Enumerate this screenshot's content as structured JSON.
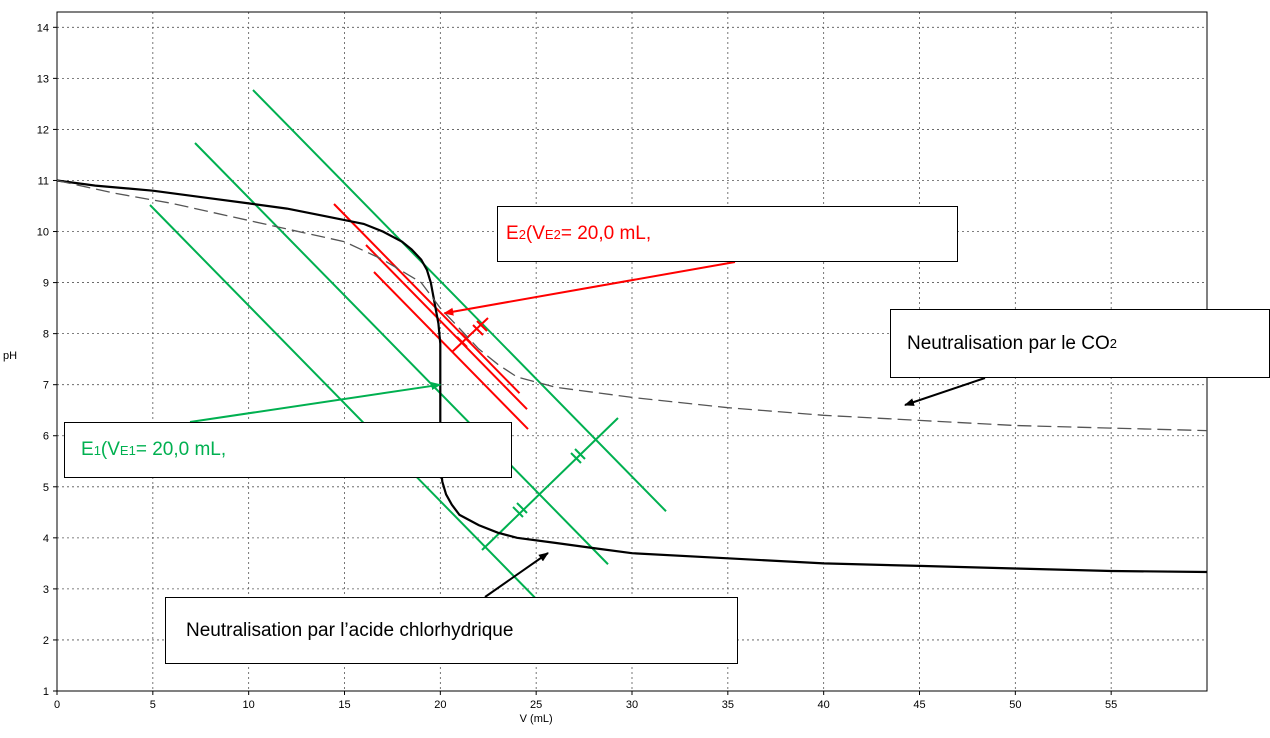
{
  "chart_data": {
    "type": "line",
    "xlabel": "V (mL)",
    "ylabel": "pH",
    "xlim": [
      0,
      60
    ],
    "ylim": [
      1,
      14.3
    ],
    "x_ticks": [
      0,
      5,
      10,
      15,
      20,
      25,
      30,
      35,
      40,
      45,
      50,
      55
    ],
    "y_ticks": [
      1,
      2,
      3,
      4,
      5,
      6,
      7,
      8,
      9,
      10,
      11,
      12,
      13,
      14
    ],
    "grid": true,
    "series": [
      {
        "style": "solid",
        "color": "#000000",
        "x": [
          0,
          2,
          5,
          8,
          10,
          12,
          14,
          16,
          17,
          18,
          18.5,
          19,
          19.3,
          19.5,
          19.7,
          19.9,
          20.0,
          20.0,
          20.0,
          20.1,
          20.3,
          20.6,
          21,
          22,
          23,
          24,
          26,
          28,
          30,
          35,
          40,
          45,
          50,
          55,
          60
        ],
        "y": [
          11.0,
          10.9,
          10.8,
          10.65,
          10.55,
          10.45,
          10.3,
          10.15,
          10.0,
          9.8,
          9.65,
          9.45,
          9.25,
          9.0,
          8.6,
          8.2,
          7.8,
          6.5,
          5.5,
          5.1,
          4.85,
          4.65,
          4.45,
          4.25,
          4.1,
          4.0,
          3.9,
          3.8,
          3.7,
          3.6,
          3.5,
          3.45,
          3.4,
          3.35,
          3.33
        ]
      },
      {
        "style": "dashed",
        "color": "#555555",
        "x": [
          0,
          3,
          6,
          9,
          12,
          15,
          17,
          19,
          20,
          21,
          22,
          23,
          24,
          26,
          28,
          30,
          35,
          40,
          45,
          50,
          55,
          60
        ],
        "y": [
          11.0,
          10.75,
          10.55,
          10.3,
          10.05,
          9.8,
          9.45,
          9.0,
          8.5,
          8.1,
          7.7,
          7.4,
          7.15,
          6.95,
          6.85,
          6.75,
          6.55,
          6.4,
          6.3,
          6.2,
          6.15,
          6.1
        ]
      }
    ],
    "annotations": {
      "e2": {
        "main": "E",
        "sub": "2",
        "mid": " (V",
        "sub2": "E2",
        "tail": " = 20,0 mL,",
        "color": "#ff0000",
        "target": [
          20.0,
          8.4
        ]
      },
      "e1": {
        "main": "E",
        "sub": "1",
        "mid": " (V",
        "sub2": "E1",
        "tail": " = 20,0 mL,",
        "color": "#00b050",
        "target": [
          20.0,
          7.0
        ]
      },
      "co2": {
        "pre": "Neutralisation par le CO",
        "sub": "2"
      },
      "hcl": {
        "text": "Neutralisation par l’acide chlorhydrique"
      }
    },
    "construction_lines": {
      "green_color": "#00b050",
      "red_color": "#ff0000"
    }
  }
}
